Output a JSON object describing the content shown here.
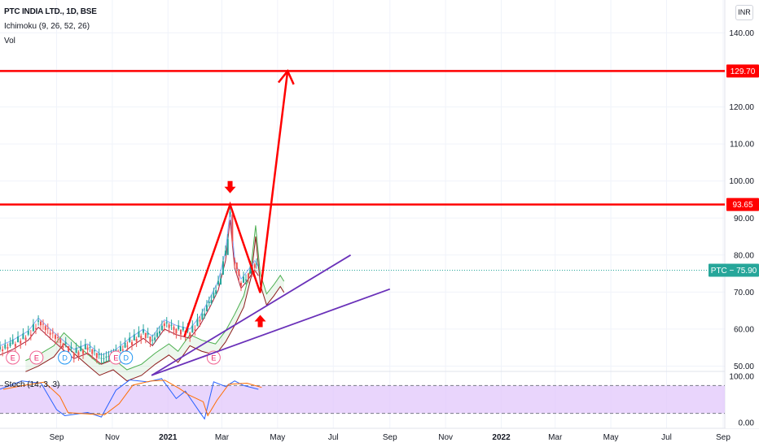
{
  "legend": {
    "title": "PTC INDIA LTD., 1D, BSE",
    "indicator": "Ichimoku (9, 26, 52, 26)",
    "volume": "Vol"
  },
  "currency": "INR",
  "stoch_label": "Stoch (14, 3, 3)",
  "colors": {
    "levels": "#ff0000",
    "trendlines": "#6a31b9",
    "price_badge": "#26a69a",
    "stoch_band": "#e1c7fb"
  },
  "chart_data": {
    "type": "line",
    "symbol": "PTC",
    "x_ticks": [
      "Sep",
      "Nov",
      "2021",
      "Mar",
      "May",
      "Jul",
      "Sep",
      "Nov",
      "2022",
      "Mar",
      "May",
      "Jul",
      "Sep"
    ],
    "y_ticks": [
      "140.00",
      "130.00",
      "120.00",
      "110.00",
      "100.00",
      "90.00",
      "80.00",
      "70.00",
      "60.00",
      "50.00"
    ],
    "ylim": [
      47,
      145
    ],
    "current_price": {
      "label": "PTC − 75.90",
      "value": 75.9
    },
    "horizontal_levels": [
      {
        "label": "129.70",
        "value": 129.7
      },
      {
        "label": "93.65",
        "value": 93.65
      }
    ],
    "projection_path": [
      {
        "date": "2021-01-19",
        "price": 58.0
      },
      {
        "date": "2021-03-10",
        "price": 93.65
      },
      {
        "date": "2021-04-12",
        "price": 69.8
      },
      {
        "date": "2021-05-12",
        "price": 129.7
      }
    ],
    "arrows": [
      {
        "direction": "down",
        "date": "2021-03-10",
        "price": 98.0
      },
      {
        "direction": "up",
        "date": "2021-04-12",
        "price": 62.5
      }
    ],
    "trendlines": [
      {
        "from": {
          "date": "2020-12-14",
          "price": 47.5
        },
        "to": {
          "date": "2021-07-20",
          "price": 80.0
        }
      },
      {
        "from": {
          "date": "2020-12-14",
          "price": 47.5
        },
        "to": {
          "date": "2021-09-01",
          "price": 70.8
        }
      }
    ],
    "events": [
      {
        "label": "E",
        "date": "2020-07-15"
      },
      {
        "label": "E",
        "date": "2020-08-10"
      },
      {
        "label": "D",
        "date": "2020-09-10"
      },
      {
        "label": "E",
        "date": "2020-11-05"
      },
      {
        "label": "D",
        "date": "2020-11-16"
      },
      {
        "label": "E",
        "date": "2021-02-20"
      }
    ],
    "close_series": [
      {
        "date": "2020-07-01",
        "price": 54.5
      },
      {
        "date": "2020-07-15",
        "price": 56.0
      },
      {
        "date": "2020-08-01",
        "price": 58.5
      },
      {
        "date": "2020-08-12",
        "price": 62.0
      },
      {
        "date": "2020-08-25",
        "price": 59.0
      },
      {
        "date": "2020-09-08",
        "price": 56.0
      },
      {
        "date": "2020-09-20",
        "price": 53.5
      },
      {
        "date": "2020-10-05",
        "price": 55.0
      },
      {
        "date": "2020-10-20",
        "price": 52.0
      },
      {
        "date": "2020-11-05",
        "price": 53.5
      },
      {
        "date": "2020-11-20",
        "price": 56.5
      },
      {
        "date": "2020-12-05",
        "price": 59.0
      },
      {
        "date": "2020-12-15",
        "price": 57.0
      },
      {
        "date": "2020-12-28",
        "price": 61.5
      },
      {
        "date": "2021-01-10",
        "price": 60.0
      },
      {
        "date": "2021-01-25",
        "price": 59.0
      },
      {
        "date": "2021-02-05",
        "price": 62.5
      },
      {
        "date": "2021-02-15",
        "price": 67.0
      },
      {
        "date": "2021-02-25",
        "price": 72.0
      },
      {
        "date": "2021-03-05",
        "price": 80.0
      },
      {
        "date": "2021-03-10",
        "price": 91.0
      },
      {
        "date": "2021-03-15",
        "price": 78.0
      },
      {
        "date": "2021-03-22",
        "price": 72.5
      },
      {
        "date": "2021-03-30",
        "price": 75.0
      },
      {
        "date": "2021-04-06",
        "price": 77.5
      },
      {
        "date": "2021-04-10",
        "price": 75.9
      }
    ],
    "stoch": {
      "ylim": [
        0,
        100
      ],
      "y_ticks": [
        "100.00",
        "0.00"
      ],
      "band": [
        20,
        80
      ],
      "k": [
        {
          "date": "2020-07-01",
          "value": 72
        },
        {
          "date": "2020-07-25",
          "value": 90
        },
        {
          "date": "2020-08-15",
          "value": 85
        },
        {
          "date": "2020-09-01",
          "value": 28
        },
        {
          "date": "2020-09-10",
          "value": 15
        },
        {
          "date": "2020-10-05",
          "value": 22
        },
        {
          "date": "2020-10-20",
          "value": 12
        },
        {
          "date": "2020-11-05",
          "value": 70
        },
        {
          "date": "2020-11-20",
          "value": 92
        },
        {
          "date": "2020-12-10",
          "value": 88
        },
        {
          "date": "2020-12-25",
          "value": 95
        },
        {
          "date": "2021-01-10",
          "value": 52
        },
        {
          "date": "2021-01-20",
          "value": 68
        },
        {
          "date": "2021-02-05",
          "value": 22
        },
        {
          "date": "2021-02-10",
          "value": 8
        },
        {
          "date": "2021-02-20",
          "value": 88
        },
        {
          "date": "2021-03-05",
          "value": 78
        },
        {
          "date": "2021-03-15",
          "value": 90
        },
        {
          "date": "2021-03-25",
          "value": 80
        },
        {
          "date": "2021-04-10",
          "value": 72
        }
      ]
    }
  }
}
